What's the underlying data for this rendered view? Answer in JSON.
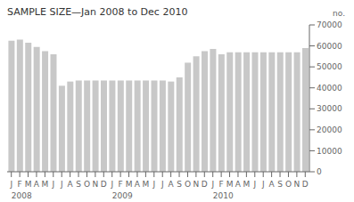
{
  "chart_data": {
    "type": "bar",
    "title": "SAMPLE SIZE—Jan 2008 to Dec 2010",
    "ylabel": "no.",
    "categories": [
      "J",
      "F",
      "M",
      "A",
      "M",
      "J",
      "J",
      "A",
      "S",
      "O",
      "N",
      "D",
      "J",
      "F",
      "M",
      "A",
      "M",
      "J",
      "J",
      "A",
      "S",
      "O",
      "N",
      "D",
      "J",
      "F",
      "M",
      "A",
      "M",
      "J",
      "J",
      "A",
      "S",
      "O",
      "N",
      "D"
    ],
    "values": [
      62500,
      63000,
      61500,
      59500,
      57500,
      56000,
      41000,
      43000,
      43500,
      43500,
      43500,
      43500,
      43500,
      43500,
      43500,
      43500,
      43500,
      43500,
      43500,
      43000,
      45000,
      52000,
      55000,
      57500,
      58500,
      56000,
      57000,
      57000,
      57000,
      57000,
      57000,
      57000,
      57000,
      57000,
      57000,
      59000
    ],
    "color": "#c8c8c8",
    "ylim": [
      0,
      70000
    ],
    "yticks": [
      0,
      10000,
      20000,
      30000,
      40000,
      50000,
      60000,
      70000
    ],
    "annotations": [
      {
        "text": "2008",
        "at": 0
      },
      {
        "text": "2009",
        "at": 12
      },
      {
        "text": "2010",
        "at": 24
      }
    ],
    "grid": false
  }
}
